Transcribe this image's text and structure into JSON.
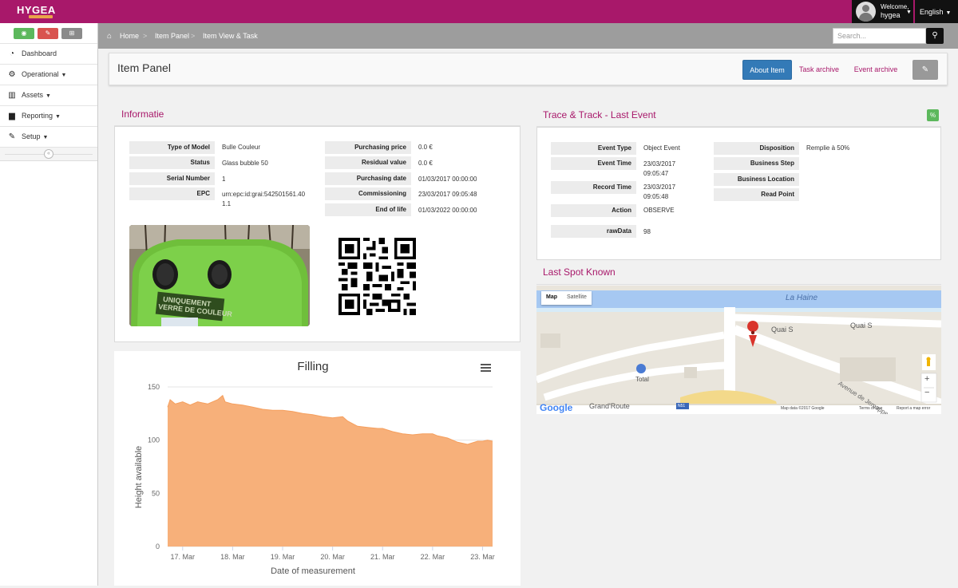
{
  "app": {
    "logo_text": "HYGEA"
  },
  "user": {
    "welcome": "Welcome,",
    "name": "hygea",
    "language": "English"
  },
  "sidebar": {
    "quick_buttons": [
      {
        "icon": "dashboard-icon",
        "color": "#5cb85c"
      },
      {
        "icon": "edit-icon",
        "color": "#d9534f"
      },
      {
        "icon": "sitemap-icon",
        "color": "#8a8a8a"
      }
    ],
    "items": [
      {
        "label": "Dashboard",
        "icon": "dashboard-icon",
        "has_caret": false
      },
      {
        "label": "Operational",
        "icon": "cogs-icon",
        "has_caret": true
      },
      {
        "label": "Assets",
        "icon": "barcode-icon",
        "has_caret": true
      },
      {
        "label": "Reporting",
        "icon": "bar-chart-icon",
        "has_caret": true
      },
      {
        "label": "Setup",
        "icon": "wrench-icon",
        "has_caret": true
      }
    ]
  },
  "breadcrumb": [
    "Home",
    "Item Panel",
    "Item View & Task"
  ],
  "search": {
    "placeholder": "Search..."
  },
  "page": {
    "title": "Item Panel",
    "tabs": [
      "About Item",
      "Task archive",
      "Event archive"
    ],
    "active_tab": "About Item"
  },
  "informatie": {
    "title": "Informatie",
    "left": [
      {
        "label": "Type of Model",
        "value": "Bulle Couleur"
      },
      {
        "label": "Status",
        "value": "Glass bubble 50"
      },
      {
        "label": "Serial Number",
        "value": "1"
      },
      {
        "label": "EPC",
        "value": "urn:epc:id:grai:542501561.40 1.1"
      }
    ],
    "right": [
      {
        "label": "Purchasing price",
        "value": "0.0 €"
      },
      {
        "label": "Residual value",
        "value": "0.0 €"
      },
      {
        "label": "Purchasing date",
        "value": "01/03/2017 00:00:00"
      },
      {
        "label": "Commissioning",
        "value": "23/03/2017 09:05:48"
      },
      {
        "label": "End of life",
        "value": "01/03/2022 00:00:00"
      }
    ],
    "photo_text": [
      "UNIQUEMENT",
      "VERRE DE COULEUR"
    ]
  },
  "trace": {
    "title": "Trace & Track - Last Event",
    "left": [
      {
        "label": "Event Type",
        "value": "Object Event"
      },
      {
        "label": "Event Time",
        "value": "23/03/2017 09:05:47"
      },
      {
        "label": "Record Time",
        "value": "23/03/2017 09:05:48"
      },
      {
        "label": "Action",
        "value": "OBSERVE"
      },
      {
        "label": "rawData",
        "value": "98"
      }
    ],
    "right": [
      {
        "label": "Disposition",
        "value": "Remplie à 50%"
      },
      {
        "label": "Business Step",
        "value": ""
      },
      {
        "label": "Business Location",
        "value": ""
      },
      {
        "label": "Read Point",
        "value": ""
      }
    ]
  },
  "spot": {
    "title": "Last Spot Known",
    "map_type_buttons": [
      "Map",
      "Satellite"
    ],
    "labels": {
      "river": "La Haine",
      "quai1": "Quai S",
      "quai2": "Quai S",
      "total": "Total",
      "avenue": "Avenue de Jemappes",
      "grand_route": "Grand'Route",
      "road_shield": "N51",
      "google": "Google",
      "map_data": "Map data ©2017 Google",
      "terms": "Terms of Use",
      "report": "Report a map error"
    },
    "zoom_in": "+",
    "zoom_out": "−"
  },
  "chart_data": {
    "type": "area",
    "title": "Filling",
    "xlabel": "Date of measurement",
    "ylabel": "Height available",
    "ylim": [
      0,
      150
    ],
    "yticks": [
      0,
      50,
      100,
      150
    ],
    "xticks": [
      "17. Mar",
      "18. Mar",
      "19. Mar",
      "20. Mar",
      "21. Mar",
      "22. Mar",
      "23. Mar"
    ],
    "x_range_days": [
      16.7,
      23.2
    ],
    "series": [
      {
        "color": "#f7b07a",
        "points": [
          [
            16.7,
            131
          ],
          [
            16.75,
            138
          ],
          [
            16.85,
            134
          ],
          [
            17.0,
            136
          ],
          [
            17.15,
            133
          ],
          [
            17.3,
            136
          ],
          [
            17.5,
            134
          ],
          [
            17.7,
            138
          ],
          [
            17.8,
            142
          ],
          [
            17.85,
            136
          ],
          [
            18.0,
            134
          ],
          [
            18.2,
            133
          ],
          [
            18.4,
            131
          ],
          [
            18.6,
            129
          ],
          [
            18.8,
            128
          ],
          [
            19.0,
            128
          ],
          [
            19.2,
            127
          ],
          [
            19.4,
            125
          ],
          [
            19.6,
            124
          ],
          [
            19.8,
            122
          ],
          [
            20.0,
            121
          ],
          [
            20.2,
            122
          ],
          [
            20.3,
            118
          ],
          [
            20.5,
            113
          ],
          [
            20.7,
            112
          ],
          [
            20.9,
            111
          ],
          [
            21.0,
            111
          ],
          [
            21.2,
            108
          ],
          [
            21.4,
            106
          ],
          [
            21.6,
            105
          ],
          [
            21.8,
            106
          ],
          [
            22.0,
            106
          ],
          [
            22.1,
            104
          ],
          [
            22.3,
            102
          ],
          [
            22.5,
            98
          ],
          [
            22.7,
            96
          ],
          [
            22.9,
            99
          ],
          [
            23.0,
            99
          ],
          [
            23.1,
            100
          ],
          [
            23.2,
            99
          ]
        ]
      }
    ]
  },
  "colors": {
    "brand": "#a8186a",
    "accent": "#337ab7",
    "chart_fill": "#f7b07a"
  }
}
